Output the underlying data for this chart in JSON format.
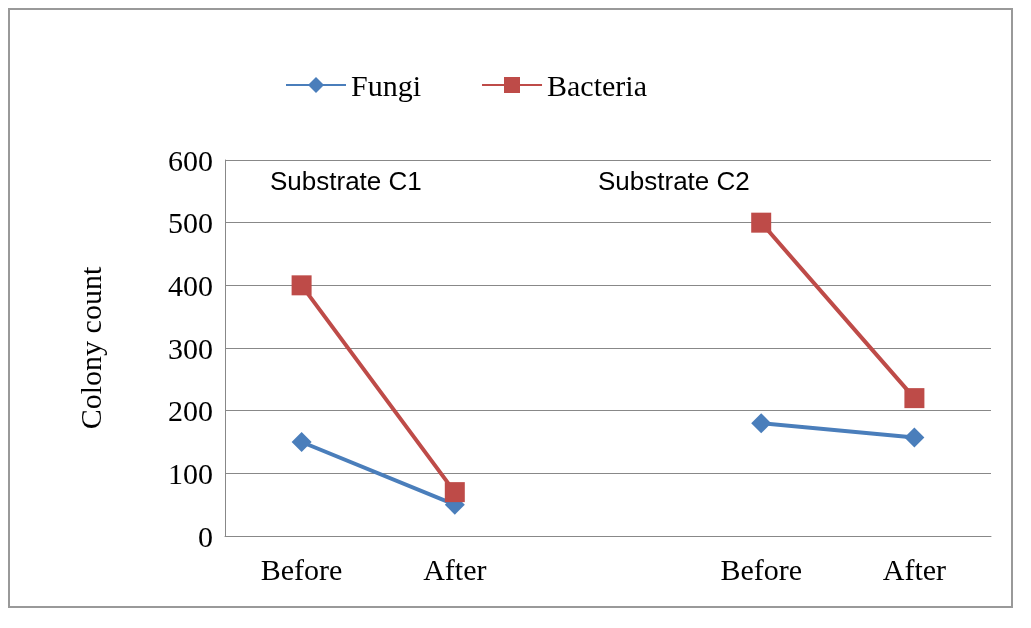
{
  "chart_data": {
    "type": "line",
    "ylabel": "Colony count",
    "categories": [
      "Before",
      "After",
      null,
      "Before",
      "After"
    ],
    "series": [
      {
        "name": "Fungi",
        "color": "#4a7ebb",
        "marker": "diamond",
        "values": [
          150,
          50,
          null,
          180,
          157
        ]
      },
      {
        "name": "Bacteria",
        "color": "#be4b48",
        "marker": "square",
        "values": [
          400,
          70,
          null,
          500,
          220
        ]
      }
    ],
    "ylim": [
      0,
      600
    ],
    "yticks": [
      0,
      100,
      200,
      300,
      400,
      500,
      600
    ],
    "grid": "y",
    "legend": "top",
    "annotations": [
      "Substrate C1",
      "Substrate C2"
    ]
  }
}
